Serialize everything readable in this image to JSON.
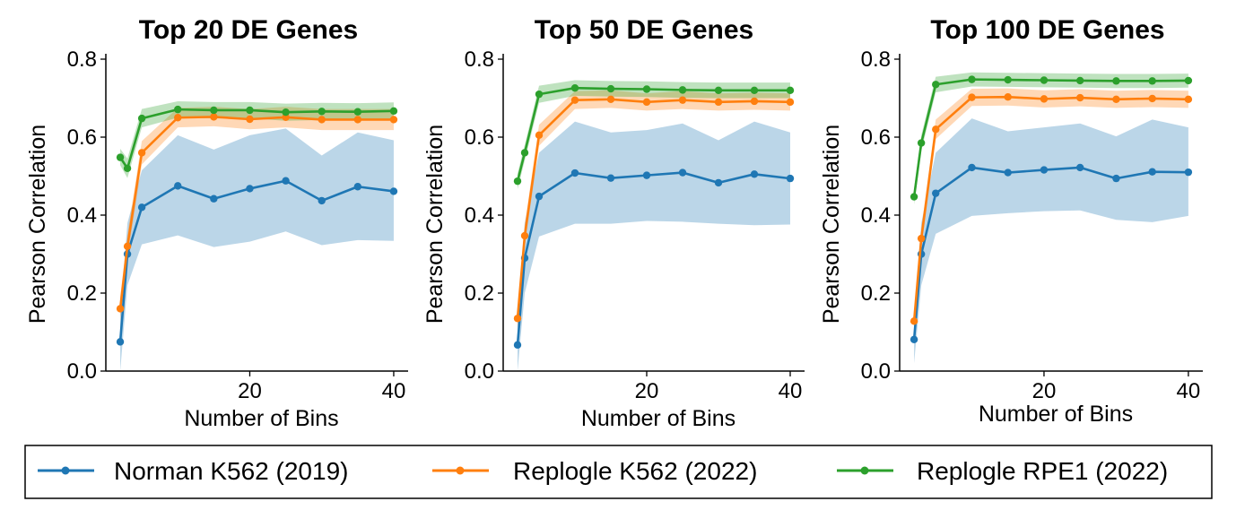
{
  "chart_data": [
    {
      "type": "line",
      "title": "Top 20 DE Genes",
      "xlabel": "Number of Bins",
      "ylabel": "Pearson Correlation",
      "ylim": [
        0.0,
        0.8
      ],
      "xlim": [
        0,
        42
      ],
      "yticks": [
        "0.0",
        "0.2",
        "0.4",
        "0.6",
        "0.8"
      ],
      "xticks": [
        "20",
        "40"
      ],
      "x": [
        2,
        3,
        5,
        10,
        15,
        20,
        25,
        30,
        35,
        40
      ],
      "series": [
        {
          "name": "Norman K562 (2019)",
          "color": "#1f77b4",
          "values": [
            0.075,
            0.3,
            0.42,
            0.475,
            0.442,
            0.468,
            0.488,
            0.437,
            0.473,
            0.461
          ],
          "lower": [
            0.0,
            0.22,
            0.325,
            0.348,
            0.318,
            0.332,
            0.358,
            0.323,
            0.336,
            0.334
          ],
          "upper": [
            0.15,
            0.38,
            0.515,
            0.605,
            0.568,
            0.605,
            0.622,
            0.553,
            0.612,
            0.592
          ]
        },
        {
          "name": "Replogle K562 (2022)",
          "color": "#ff7f0e",
          "values": [
            0.16,
            0.32,
            0.56,
            0.65,
            0.652,
            0.646,
            0.651,
            0.645,
            0.645,
            0.645
          ],
          "lower": [
            0.13,
            0.29,
            0.53,
            0.625,
            0.628,
            0.62,
            0.625,
            0.618,
            0.618,
            0.618
          ],
          "upper": [
            0.19,
            0.35,
            0.59,
            0.675,
            0.678,
            0.672,
            0.678,
            0.672,
            0.672,
            0.672
          ]
        },
        {
          "name": "Replogle RPE1 (2022)",
          "color": "#2ca02c",
          "values": [
            0.548,
            0.52,
            0.648,
            0.671,
            0.669,
            0.669,
            0.664,
            0.666,
            0.665,
            0.667
          ],
          "lower": [
            0.528,
            0.495,
            0.625,
            0.65,
            0.648,
            0.648,
            0.642,
            0.644,
            0.643,
            0.645
          ],
          "upper": [
            0.57,
            0.545,
            0.672,
            0.692,
            0.69,
            0.69,
            0.686,
            0.688,
            0.687,
            0.689
          ]
        }
      ]
    },
    {
      "type": "line",
      "title": "Top 50 DE Genes",
      "xlabel": "Number of Bins",
      "ylabel": "Pearson Correlation",
      "ylim": [
        0.0,
        0.8
      ],
      "xlim": [
        0,
        42
      ],
      "yticks": [
        "0.0",
        "0.2",
        "0.4",
        "0.6",
        "0.8"
      ],
      "xticks": [
        "20",
        "40"
      ],
      "x": [
        2,
        3,
        5,
        10,
        15,
        20,
        25,
        30,
        35,
        40
      ],
      "series": [
        {
          "name": "Norman K562 (2019)",
          "color": "#1f77b4",
          "values": [
            0.067,
            0.29,
            0.448,
            0.508,
            0.495,
            0.502,
            0.509,
            0.483,
            0.505,
            0.494
          ],
          "lower": [
            0.0,
            0.2,
            0.345,
            0.378,
            0.378,
            0.385,
            0.383,
            0.378,
            0.374,
            0.376
          ],
          "upper": [
            0.14,
            0.38,
            0.56,
            0.64,
            0.612,
            0.618,
            0.635,
            0.592,
            0.64,
            0.612
          ]
        },
        {
          "name": "Replogle K562 (2022)",
          "color": "#ff7f0e",
          "values": [
            0.135,
            0.347,
            0.605,
            0.695,
            0.697,
            0.69,
            0.695,
            0.69,
            0.692,
            0.69
          ],
          "lower": [
            0.11,
            0.32,
            0.578,
            0.672,
            0.675,
            0.668,
            0.672,
            0.668,
            0.67,
            0.668
          ],
          "upper": [
            0.16,
            0.375,
            0.632,
            0.718,
            0.72,
            0.712,
            0.718,
            0.712,
            0.714,
            0.712
          ]
        },
        {
          "name": "Replogle RPE1 (2022)",
          "color": "#2ca02c",
          "values": [
            0.487,
            0.56,
            0.71,
            0.726,
            0.724,
            0.723,
            0.721,
            0.72,
            0.72,
            0.72
          ],
          "lower": [
            0.467,
            0.54,
            0.688,
            0.706,
            0.704,
            0.703,
            0.701,
            0.7,
            0.7,
            0.7
          ],
          "upper": [
            0.507,
            0.58,
            0.732,
            0.746,
            0.744,
            0.743,
            0.741,
            0.74,
            0.74,
            0.74
          ]
        }
      ]
    },
    {
      "type": "line",
      "title": "Top 100 DE Genes",
      "xlabel": "Number of Bins",
      "ylabel": "Pearson Correlation",
      "ylim": [
        0.0,
        0.8
      ],
      "xlim": [
        0,
        42
      ],
      "yticks": [
        "0.0",
        "0.2",
        "0.4",
        "0.6",
        "0.8"
      ],
      "xticks": [
        "20",
        "40"
      ],
      "x": [
        2,
        3,
        5,
        10,
        15,
        20,
        25,
        30,
        35,
        40
      ],
      "series": [
        {
          "name": "Norman K562 (2019)",
          "color": "#1f77b4",
          "values": [
            0.081,
            0.3,
            0.456,
            0.522,
            0.509,
            0.516,
            0.522,
            0.494,
            0.511,
            0.51
          ],
          "lower": [
            0.02,
            0.22,
            0.352,
            0.398,
            0.405,
            0.41,
            0.412,
            0.388,
            0.382,
            0.398
          ],
          "upper": [
            0.14,
            0.38,
            0.56,
            0.648,
            0.615,
            0.625,
            0.635,
            0.602,
            0.645,
            0.625
          ]
        },
        {
          "name": "Replogle K562 (2022)",
          "color": "#ff7f0e",
          "values": [
            0.128,
            0.34,
            0.62,
            0.702,
            0.703,
            0.698,
            0.701,
            0.697,
            0.699,
            0.697
          ],
          "lower": [
            0.105,
            0.315,
            0.595,
            0.68,
            0.681,
            0.676,
            0.679,
            0.675,
            0.677,
            0.675
          ],
          "upper": [
            0.15,
            0.365,
            0.645,
            0.724,
            0.725,
            0.72,
            0.723,
            0.719,
            0.721,
            0.719
          ]
        },
        {
          "name": "Replogle RPE1 (2022)",
          "color": "#2ca02c",
          "values": [
            0.447,
            0.585,
            0.735,
            0.748,
            0.747,
            0.746,
            0.745,
            0.744,
            0.744,
            0.745
          ],
          "lower": [
            0.427,
            0.565,
            0.715,
            0.73,
            0.729,
            0.728,
            0.727,
            0.726,
            0.726,
            0.727
          ],
          "upper": [
            0.467,
            0.605,
            0.755,
            0.766,
            0.765,
            0.764,
            0.763,
            0.762,
            0.762,
            0.763
          ]
        }
      ]
    }
  ],
  "legend": {
    "placement": "bottom",
    "items": [
      {
        "label": "Norman K562 (2019)",
        "color": "#1f77b4"
      },
      {
        "label": "Replogle K562 (2022)",
        "color": "#ff7f0e"
      },
      {
        "label": "Replogle RPE1 (2022)",
        "color": "#2ca02c"
      }
    ]
  }
}
